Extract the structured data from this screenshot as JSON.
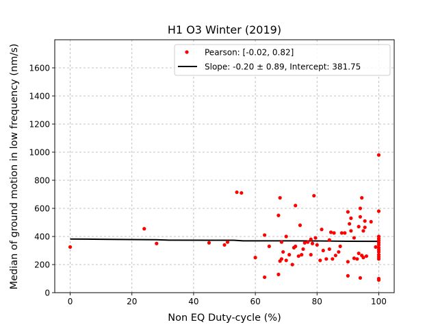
{
  "chart_data": {
    "type": "scatter",
    "title": "H1 O3 Winter (2019)",
    "xlabel": "Non EQ Duty-cycle (%)",
    "ylabel": "Median of ground motion in low frequency (nm/s)",
    "xlim": [
      -5,
      105
    ],
    "ylim": [
      0,
      1800
    ],
    "xticks": [
      0,
      20,
      40,
      60,
      80,
      100
    ],
    "yticks": [
      0,
      200,
      400,
      600,
      800,
      1000,
      1200,
      1400,
      1600
    ],
    "grid": true,
    "legend_position": "top-right",
    "colors": {
      "points": "#ff0000",
      "line": "#000000",
      "grid": "#b0b0b0"
    },
    "series": [
      {
        "name": "Pearson: [-0.02, 0.82]",
        "kind": "scatter",
        "points": [
          [
            0,
            325
          ],
          [
            24,
            455
          ],
          [
            28,
            350
          ],
          [
            45,
            355
          ],
          [
            50,
            340
          ],
          [
            51,
            360
          ],
          [
            54,
            715
          ],
          [
            55.5,
            710
          ],
          [
            60,
            250
          ],
          [
            63,
            410
          ],
          [
            63,
            110
          ],
          [
            64.5,
            330
          ],
          [
            67.5,
            130
          ],
          [
            67.5,
            550
          ],
          [
            68,
            675
          ],
          [
            68,
            225
          ],
          [
            68.5,
            360
          ],
          [
            68.5,
            240
          ],
          [
            69,
            290
          ],
          [
            70,
            400
          ],
          [
            70,
            230
          ],
          [
            71,
            270
          ],
          [
            72,
            200
          ],
          [
            72.5,
            320
          ],
          [
            73,
            620
          ],
          [
            73,
            330
          ],
          [
            74,
            260
          ],
          [
            74.5,
            480
          ],
          [
            75,
            270
          ],
          [
            75.5,
            310
          ],
          [
            76,
            355
          ],
          [
            77,
            360
          ],
          [
            78,
            270
          ],
          [
            78,
            380
          ],
          [
            78.5,
            350
          ],
          [
            79,
            690
          ],
          [
            79.5,
            390
          ],
          [
            80,
            340
          ],
          [
            81,
            230
          ],
          [
            81.5,
            450
          ],
          [
            82,
            300
          ],
          [
            83,
            240
          ],
          [
            84,
            375
          ],
          [
            84,
            310
          ],
          [
            84.5,
            430
          ],
          [
            85,
            240
          ],
          [
            85.5,
            425
          ],
          [
            86,
            265
          ],
          [
            87,
            290
          ],
          [
            87.5,
            330
          ],
          [
            88,
            425
          ],
          [
            89,
            425
          ],
          [
            90,
            120
          ],
          [
            90,
            575
          ],
          [
            90,
            220
          ],
          [
            90.5,
            490
          ],
          [
            91,
            440
          ],
          [
            91,
            530
          ],
          [
            92,
            390
          ],
          [
            92,
            245
          ],
          [
            93,
            240
          ],
          [
            93.5,
            470
          ],
          [
            93.5,
            280
          ],
          [
            94,
            540
          ],
          [
            94,
            105
          ],
          [
            94,
            600
          ],
          [
            94.5,
            675
          ],
          [
            94.5,
            265
          ],
          [
            95,
            440
          ],
          [
            95,
            250
          ],
          [
            95.5,
            510
          ],
          [
            95.5,
            465
          ],
          [
            96,
            260
          ],
          [
            97.5,
            505
          ],
          [
            99,
            325
          ],
          [
            100,
            980
          ],
          [
            100,
            580
          ],
          [
            100,
            400
          ],
          [
            100,
            385
          ],
          [
            100,
            370
          ],
          [
            100,
            355
          ],
          [
            100,
            340
          ],
          [
            100,
            320
          ],
          [
            100,
            305
          ],
          [
            100,
            290
          ],
          [
            100,
            270
          ],
          [
            100,
            255
          ],
          [
            100,
            240
          ],
          [
            100,
            100
          ],
          [
            100,
            90
          ]
        ]
      },
      {
        "name": "Slope: -0.20 ± 0.89, Intercept: 381.75",
        "kind": "line",
        "points": [
          [
            0,
            382
          ],
          [
            10,
            380
          ],
          [
            20,
            378
          ],
          [
            28,
            377
          ],
          [
            32,
            374
          ],
          [
            45,
            373
          ],
          [
            53,
            373
          ],
          [
            56,
            369
          ],
          [
            70,
            369
          ],
          [
            80,
            368
          ],
          [
            90,
            366
          ],
          [
            100,
            365
          ]
        ]
      }
    ]
  }
}
